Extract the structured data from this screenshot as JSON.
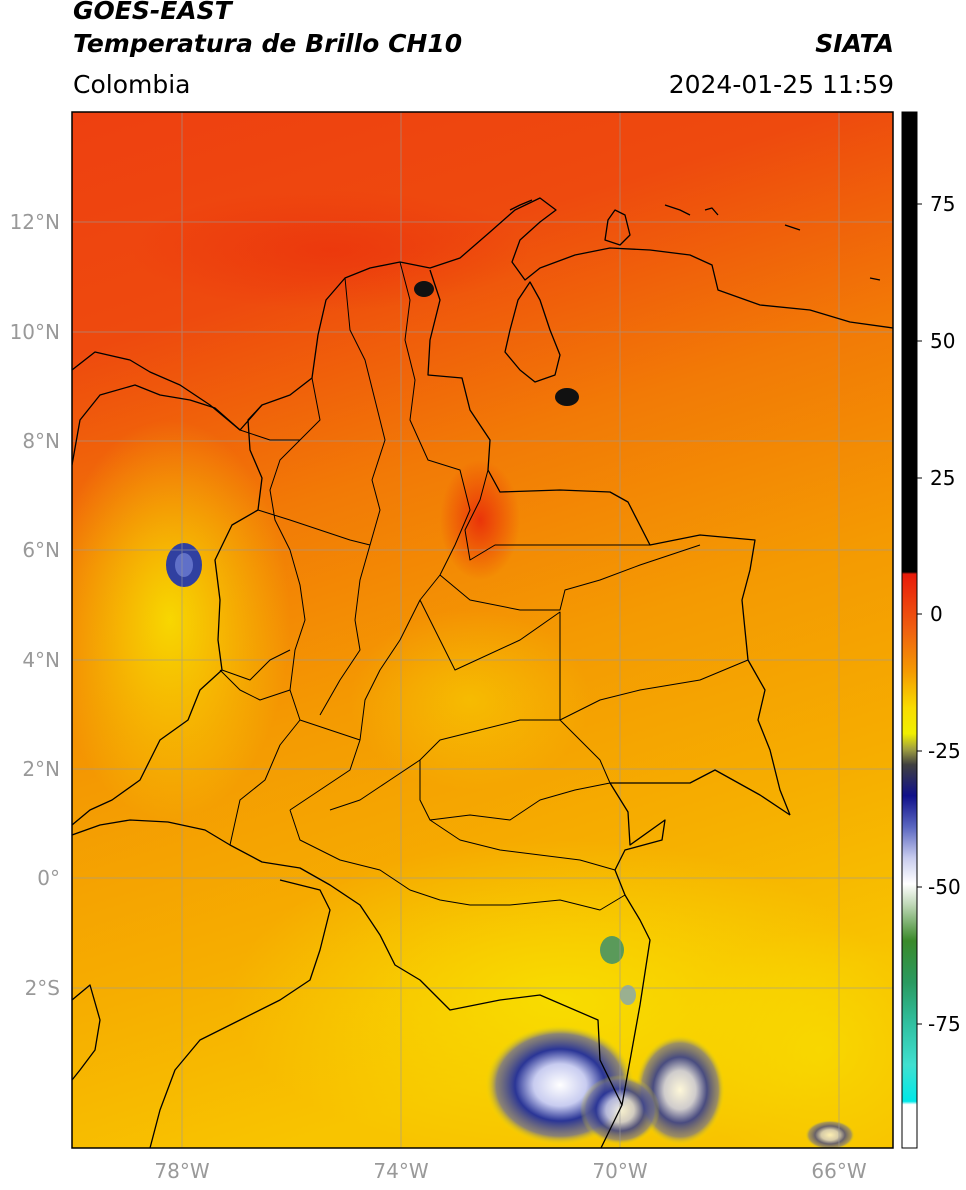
{
  "header": {
    "satellite": "GOES-EAST",
    "product": "Temperatura de Brillo CH10",
    "region": "Colombia",
    "source": "SIATA",
    "datetime": "2024-01-25 11:59"
  },
  "map": {
    "lon_range": [
      -80,
      -65
    ],
    "lat_range": [
      -5,
      14
    ],
    "lat_ticks": [
      "12°N",
      "10°N",
      "8°N",
      "6°N",
      "4°N",
      "2°N",
      "0°",
      "2°S"
    ],
    "lat_tick_values": [
      12,
      10,
      8,
      6,
      4,
      2,
      0,
      -2
    ],
    "lon_ticks": [
      "78°W",
      "74°W",
      "70°W",
      "66°W"
    ],
    "lon_tick_values": [
      -78,
      -74,
      -70,
      -66
    ]
  },
  "colorbar": {
    "ticks": [
      "75",
      "50",
      "25",
      "0",
      "-25",
      "-50",
      "-75"
    ],
    "tick_values": [
      75,
      50,
      25,
      0,
      -25,
      -50,
      -75
    ],
    "range": [
      -97,
      90
    ]
  },
  "colors": {
    "warm": "#ee3a0a",
    "mid": "#f39a00",
    "cool": "#f5d400",
    "cloud_blue": "#1e2a8c",
    "border": "#000000",
    "grid": "#9a9a9a"
  }
}
